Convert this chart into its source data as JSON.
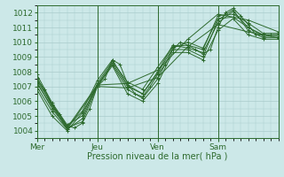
{
  "bg_color": "#cce8e8",
  "grid_color": "#aacccc",
  "line_color": "#2d6a2d",
  "marker_color": "#2d6a2d",
  "xlim": [
    0,
    96
  ],
  "ylim": [
    1003.5,
    1012.5
  ],
  "yticks": [
    1004,
    1005,
    1006,
    1007,
    1008,
    1009,
    1010,
    1011,
    1012
  ],
  "xtick_positions": [
    0,
    24,
    48,
    72
  ],
  "xtick_labels": [
    "Mer",
    "Jeu",
    "Ven",
    "Sam"
  ],
  "xlabel": "Pression niveau de la mer( hPa )",
  "series": [
    [
      0,
      1007.5,
      3,
      1006.8,
      6,
      1005.8,
      9,
      1005.1,
      12,
      1004.3,
      15,
      1004.2,
      18,
      1004.5,
      21,
      1005.5,
      24,
      1007.0,
      27,
      1007.5,
      30,
      1008.8,
      33,
      1008.5,
      36,
      1007.2,
      39,
      1006.5,
      42,
      1006.3,
      45,
      1007.0,
      48,
      1007.8,
      51,
      1008.5,
      54,
      1009.5,
      57,
      1010.0,
      60,
      1009.8,
      63,
      1009.5,
      66,
      1009.2,
      69,
      1009.5,
      72,
      1011.0,
      75,
      1012.0,
      78,
      1012.3,
      81,
      1011.8,
      84,
      1011.2,
      87,
      1010.5,
      90,
      1010.5,
      93,
      1010.5,
      96,
      1010.5
    ],
    [
      0,
      1007.3,
      6,
      1005.5,
      12,
      1004.2,
      18,
      1004.6,
      24,
      1007.0,
      30,
      1008.6,
      36,
      1007.0,
      42,
      1006.5,
      48,
      1008.0,
      54,
      1009.8,
      60,
      1009.6,
      66,
      1009.3,
      72,
      1011.3,
      78,
      1012.1,
      84,
      1011.0,
      90,
      1010.4,
      96,
      1010.4
    ],
    [
      0,
      1007.0,
      6,
      1005.3,
      12,
      1004.1,
      18,
      1004.8,
      24,
      1007.1,
      30,
      1008.5,
      36,
      1006.8,
      42,
      1006.2,
      48,
      1007.5,
      54,
      1009.5,
      60,
      1009.5,
      66,
      1009.0,
      72,
      1011.5,
      78,
      1012.2,
      84,
      1010.8,
      90,
      1010.3,
      96,
      1010.3
    ],
    [
      0,
      1007.8,
      6,
      1005.9,
      12,
      1004.4,
      18,
      1005.0,
      24,
      1007.2,
      30,
      1008.7,
      36,
      1007.3,
      42,
      1006.8,
      48,
      1008.3,
      54,
      1009.7,
      60,
      1009.8,
      66,
      1009.5,
      72,
      1011.8,
      78,
      1011.9,
      84,
      1011.3,
      90,
      1010.6,
      96,
      1010.6
    ],
    [
      0,
      1006.8,
      6,
      1005.0,
      12,
      1004.0,
      18,
      1005.2,
      24,
      1007.0,
      30,
      1008.4,
      36,
      1006.5,
      42,
      1006.0,
      48,
      1007.2,
      54,
      1009.3,
      60,
      1009.3,
      66,
      1008.8,
      72,
      1010.8,
      78,
      1011.6,
      84,
      1010.5,
      90,
      1010.2,
      96,
      1010.2
    ],
    [
      0,
      1007.6,
      6,
      1005.7,
      12,
      1004.3,
      18,
      1005.3,
      24,
      1007.4,
      30,
      1008.8,
      36,
      1007.1,
      42,
      1006.5,
      48,
      1007.9,
      54,
      1009.6,
      60,
      1010.0,
      66,
      1009.6,
      72,
      1011.6,
      78,
      1011.7,
      84,
      1011.0,
      90,
      1010.5,
      96,
      1010.5
    ],
    [
      0,
      1007.2,
      12,
      1004.1,
      24,
      1007.0,
      36,
      1006.9,
      48,
      1007.6,
      60,
      1009.7,
      72,
      1011.2,
      84,
      1010.7,
      96,
      1010.3
    ],
    [
      0,
      1007.4,
      12,
      1004.2,
      24,
      1007.1,
      36,
      1007.2,
      48,
      1008.1,
      60,
      1010.2,
      72,
      1011.9,
      84,
      1011.5,
      96,
      1010.7
    ]
  ]
}
